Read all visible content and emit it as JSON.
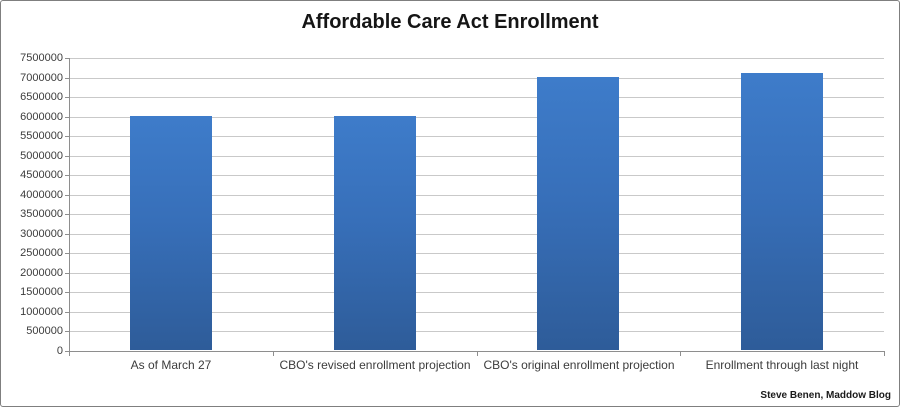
{
  "chart_data": {
    "type": "bar",
    "title": "Affordable Care Act Enrollment",
    "categories": [
      "As of March 27",
      "CBO's revised enrollment projection",
      "CBO's original enrollment projection",
      "Enrollment through last night"
    ],
    "values": [
      6000000,
      6000000,
      7000000,
      7100000
    ],
    "xlabel": "",
    "ylabel": "",
    "ylim": [
      0,
      7500000
    ],
    "ytick_step": 500000,
    "grid": true,
    "legend": "none",
    "bar_color_top": "#3e7cca",
    "bar_color_bottom": "#2e5c99",
    "attribution": "Steve Benen, Maddow Blog"
  }
}
